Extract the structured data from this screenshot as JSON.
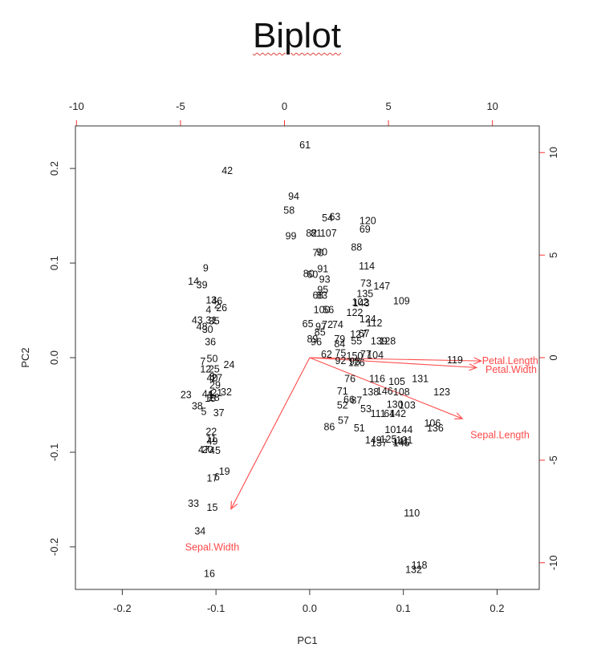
{
  "title": "Biplot",
  "chart_data": {
    "type": "scatter",
    "xlabel": "PC1",
    "ylabel": "PC2",
    "xlim": [
      -0.25,
      0.245
    ],
    "ylim": [
      -0.245,
      0.245
    ],
    "xticks": [
      -0.2,
      -0.1,
      0.0,
      0.1,
      0.2
    ],
    "yticks": [
      -0.2,
      -0.1,
      0.0,
      0.1,
      0.2
    ],
    "secondary_xlim": [
      -10.05,
      12.25
    ],
    "secondary_ylim": [
      -11.3,
      11.3
    ],
    "secondary_ticks": [
      -10,
      -5,
      0,
      5,
      10
    ],
    "secondary_color": "#ff3030",
    "arrow_color": "#ff4a4a",
    "grid": false,
    "points": [
      {
        "label": "61",
        "x": -0.005,
        "y": 0.225
      },
      {
        "label": "42",
        "x": -0.088,
        "y": 0.198
      },
      {
        "label": "94",
        "x": -0.017,
        "y": 0.171
      },
      {
        "label": "58",
        "x": -0.022,
        "y": 0.156
      },
      {
        "label": "54",
        "x": 0.019,
        "y": 0.148
      },
      {
        "label": "63",
        "x": 0.027,
        "y": 0.149
      },
      {
        "label": "120",
        "x": 0.062,
        "y": 0.145
      },
      {
        "label": "69",
        "x": 0.059,
        "y": 0.136
      },
      {
        "label": "99",
        "x": -0.02,
        "y": 0.129
      },
      {
        "label": "82",
        "x": 0.002,
        "y": 0.132
      },
      {
        "label": "81",
        "x": 0.007,
        "y": 0.132
      },
      {
        "label": "107",
        "x": 0.02,
        "y": 0.132
      },
      {
        "label": "88",
        "x": 0.05,
        "y": 0.117
      },
      {
        "label": "70",
        "x": 0.009,
        "y": 0.111
      },
      {
        "label": "90",
        "x": 0.013,
        "y": 0.112
      },
      {
        "label": "114",
        "x": 0.061,
        "y": 0.097
      },
      {
        "label": "9",
        "x": -0.111,
        "y": 0.095
      },
      {
        "label": "91",
        "x": 0.014,
        "y": 0.094
      },
      {
        "label": "80",
        "x": -0.001,
        "y": 0.089
      },
      {
        "label": "60",
        "x": 0.003,
        "y": 0.088
      },
      {
        "label": "93",
        "x": 0.016,
        "y": 0.083
      },
      {
        "label": "14",
        "x": -0.124,
        "y": 0.081
      },
      {
        "label": "39",
        "x": -0.115,
        "y": 0.077
      },
      {
        "label": "73",
        "x": 0.06,
        "y": 0.079
      },
      {
        "label": "147",
        "x": 0.077,
        "y": 0.076
      },
      {
        "label": "95",
        "x": 0.014,
        "y": 0.072
      },
      {
        "label": "135",
        "x": 0.059,
        "y": 0.068
      },
      {
        "label": "68",
        "x": 0.009,
        "y": 0.066
      },
      {
        "label": "83",
        "x": 0.013,
        "y": 0.066
      },
      {
        "label": "109",
        "x": 0.098,
        "y": 0.06
      },
      {
        "label": "13",
        "x": -0.105,
        "y": 0.061
      },
      {
        "label": "46",
        "x": -0.099,
        "y": 0.06
      },
      {
        "label": "102",
        "x": 0.054,
        "y": 0.059
      },
      {
        "label": "143",
        "x": 0.055,
        "y": 0.058
      },
      {
        "label": "2",
        "x": -0.099,
        "y": 0.056
      },
      {
        "label": "26",
        "x": -0.094,
        "y": 0.053
      },
      {
        "label": "4",
        "x": -0.108,
        "y": 0.051
      },
      {
        "label": "100",
        "x": 0.013,
        "y": 0.051
      },
      {
        "label": "56",
        "x": 0.02,
        "y": 0.051
      },
      {
        "label": "122",
        "x": 0.048,
        "y": 0.048
      },
      {
        "label": "43",
        "x": -0.12,
        "y": 0.04
      },
      {
        "label": "31",
        "x": -0.105,
        "y": 0.04
      },
      {
        "label": "35",
        "x": -0.102,
        "y": 0.039
      },
      {
        "label": "124",
        "x": 0.062,
        "y": 0.041
      },
      {
        "label": "112",
        "x": 0.069,
        "y": 0.037
      },
      {
        "label": "65",
        "x": -0.002,
        "y": 0.036
      },
      {
        "label": "97",
        "x": 0.012,
        "y": 0.033
      },
      {
        "label": "72",
        "x": 0.019,
        "y": 0.035
      },
      {
        "label": "74",
        "x": 0.03,
        "y": 0.035
      },
      {
        "label": "48",
        "x": -0.115,
        "y": 0.033
      },
      {
        "label": "30",
        "x": -0.109,
        "y": 0.03
      },
      {
        "label": "85",
        "x": 0.011,
        "y": 0.027
      },
      {
        "label": "127",
        "x": 0.052,
        "y": 0.025
      },
      {
        "label": "67",
        "x": 0.058,
        "y": 0.026
      },
      {
        "label": "36",
        "x": -0.106,
        "y": 0.017
      },
      {
        "label": "89",
        "x": 0.003,
        "y": 0.02
      },
      {
        "label": "96",
        "x": 0.007,
        "y": 0.017
      },
      {
        "label": "79",
        "x": 0.032,
        "y": 0.02
      },
      {
        "label": "55",
        "x": 0.05,
        "y": 0.018
      },
      {
        "label": "139",
        "x": 0.074,
        "y": 0.018
      },
      {
        "label": "128",
        "x": 0.083,
        "y": 0.018
      },
      {
        "label": "84",
        "x": 0.032,
        "y": 0.015
      },
      {
        "label": "62",
        "x": 0.018,
        "y": 0.004
      },
      {
        "label": "75",
        "x": 0.033,
        "y": 0.005
      },
      {
        "label": "150",
        "x": 0.048,
        "y": 0.002
      },
      {
        "label": "77",
        "x": 0.06,
        "y": 0.004
      },
      {
        "label": "104",
        "x": 0.07,
        "y": 0.003
      },
      {
        "label": "92",
        "x": 0.033,
        "y": -0.003
      },
      {
        "label": "98",
        "x": 0.048,
        "y": -0.004
      },
      {
        "label": "126",
        "x": 0.05,
        "y": -0.005
      },
      {
        "label": "119",
        "x": 0.155,
        "y": -0.002
      },
      {
        "label": "7",
        "x": -0.114,
        "y": -0.004
      },
      {
        "label": "50",
        "x": -0.104,
        "y": -0.001
      },
      {
        "label": "24",
        "x": -0.086,
        "y": -0.007
      },
      {
        "label": "12",
        "x": -0.111,
        "y": -0.012
      },
      {
        "label": "25",
        "x": -0.102,
        "y": -0.012
      },
      {
        "label": "40",
        "x": -0.104,
        "y": -0.021
      },
      {
        "label": "8",
        "x": -0.104,
        "y": -0.02
      },
      {
        "label": "27",
        "x": -0.099,
        "y": -0.021
      },
      {
        "label": "29",
        "x": -0.101,
        "y": -0.029
      },
      {
        "label": "76",
        "x": 0.043,
        "y": -0.022
      },
      {
        "label": "116",
        "x": 0.072,
        "y": -0.022
      },
      {
        "label": "105",
        "x": 0.093,
        "y": -0.025
      },
      {
        "label": "131",
        "x": 0.118,
        "y": -0.022
      },
      {
        "label": "71",
        "x": 0.035,
        "y": -0.035
      },
      {
        "label": "138",
        "x": 0.065,
        "y": -0.036
      },
      {
        "label": "146",
        "x": 0.08,
        "y": -0.035
      },
      {
        "label": "108",
        "x": 0.098,
        "y": -0.036
      },
      {
        "label": "123",
        "x": 0.141,
        "y": -0.036
      },
      {
        "label": "23",
        "x": -0.132,
        "y": -0.039
      },
      {
        "label": "44",
        "x": -0.109,
        "y": -0.038
      },
      {
        "label": "1",
        "x": -0.106,
        "y": -0.039
      },
      {
        "label": "21",
        "x": -0.099,
        "y": -0.037
      },
      {
        "label": "32",
        "x": -0.089,
        "y": -0.036
      },
      {
        "label": "18",
        "x": -0.106,
        "y": -0.043
      },
      {
        "label": "28",
        "x": -0.102,
        "y": -0.042
      },
      {
        "label": "66",
        "x": 0.042,
        "y": -0.044
      },
      {
        "label": "87",
        "x": 0.05,
        "y": -0.045
      },
      {
        "label": "130",
        "x": 0.091,
        "y": -0.049
      },
      {
        "label": "103",
        "x": 0.104,
        "y": -0.05
      },
      {
        "label": "38",
        "x": -0.12,
        "y": -0.051
      },
      {
        "label": "5",
        "x": -0.113,
        "y": -0.057
      },
      {
        "label": "37",
        "x": -0.097,
        "y": -0.058
      },
      {
        "label": "52",
        "x": 0.035,
        "y": -0.05
      },
      {
        "label": "53",
        "x": 0.06,
        "y": -0.054
      },
      {
        "label": "111",
        "x": 0.073,
        "y": -0.059
      },
      {
        "label": "64",
        "x": 0.085,
        "y": -0.059
      },
      {
        "label": "142",
        "x": 0.094,
        "y": -0.059
      },
      {
        "label": "57",
        "x": 0.036,
        "y": -0.066
      },
      {
        "label": "86",
        "x": 0.021,
        "y": -0.073
      },
      {
        "label": "51",
        "x": 0.053,
        "y": -0.074
      },
      {
        "label": "101",
        "x": 0.089,
        "y": -0.076
      },
      {
        "label": "144",
        "x": 0.101,
        "y": -0.076
      },
      {
        "label": "106",
        "x": 0.131,
        "y": -0.069
      },
      {
        "label": "136",
        "x": 0.134,
        "y": -0.074
      },
      {
        "label": "22",
        "x": -0.105,
        "y": -0.078
      },
      {
        "label": "11",
        "x": -0.105,
        "y": -0.085
      },
      {
        "label": "49",
        "x": -0.104,
        "y": -0.088
      },
      {
        "label": "149",
        "x": 0.068,
        "y": -0.087
      },
      {
        "label": "125",
        "x": 0.084,
        "y": -0.086
      },
      {
        "label": "121",
        "x": 0.101,
        "y": -0.087
      },
      {
        "label": "137",
        "x": 0.074,
        "y": -0.09
      },
      {
        "label": "141",
        "x": 0.097,
        "y": -0.088
      },
      {
        "label": "145",
        "x": 0.098,
        "y": -0.09
      },
      {
        "label": "47",
        "x": -0.113,
        "y": -0.097
      },
      {
        "label": "20",
        "x": -0.109,
        "y": -0.097
      },
      {
        "label": "45",
        "x": -0.101,
        "y": -0.098
      },
      {
        "label": "19",
        "x": -0.091,
        "y": -0.12
      },
      {
        "label": "17",
        "x": -0.104,
        "y": -0.127
      },
      {
        "label": "6",
        "x": -0.099,
        "y": -0.126
      },
      {
        "label": "33",
        "x": -0.124,
        "y": -0.154
      },
      {
        "label": "15",
        "x": -0.104,
        "y": -0.158
      },
      {
        "label": "110",
        "x": 0.109,
        "y": -0.164
      },
      {
        "label": "34",
        "x": -0.117,
        "y": -0.183
      },
      {
        "label": "118",
        "x": 0.117,
        "y": -0.219
      },
      {
        "label": "132",
        "x": 0.111,
        "y": -0.224
      },
      {
        "label": "16",
        "x": -0.107,
        "y": -0.228
      }
    ],
    "loadings": [
      {
        "label": "Petal.Length",
        "x": 0.183,
        "y": -0.0035,
        "label_x": 0.214,
        "label_y": -0.003
      },
      {
        "label": "Petal.Width",
        "x": 0.178,
        "y": -0.0105,
        "label_x": 0.215,
        "label_y": -0.0125
      },
      {
        "label": "Sepal.Length",
        "x": 0.163,
        "y": -0.0645,
        "label_x": 0.203,
        "label_y": -0.0815
      },
      {
        "label": "Sepal.Width",
        "x": -0.084,
        "y": -0.16,
        "label_x": -0.104,
        "label_y": -0.2
      }
    ]
  }
}
